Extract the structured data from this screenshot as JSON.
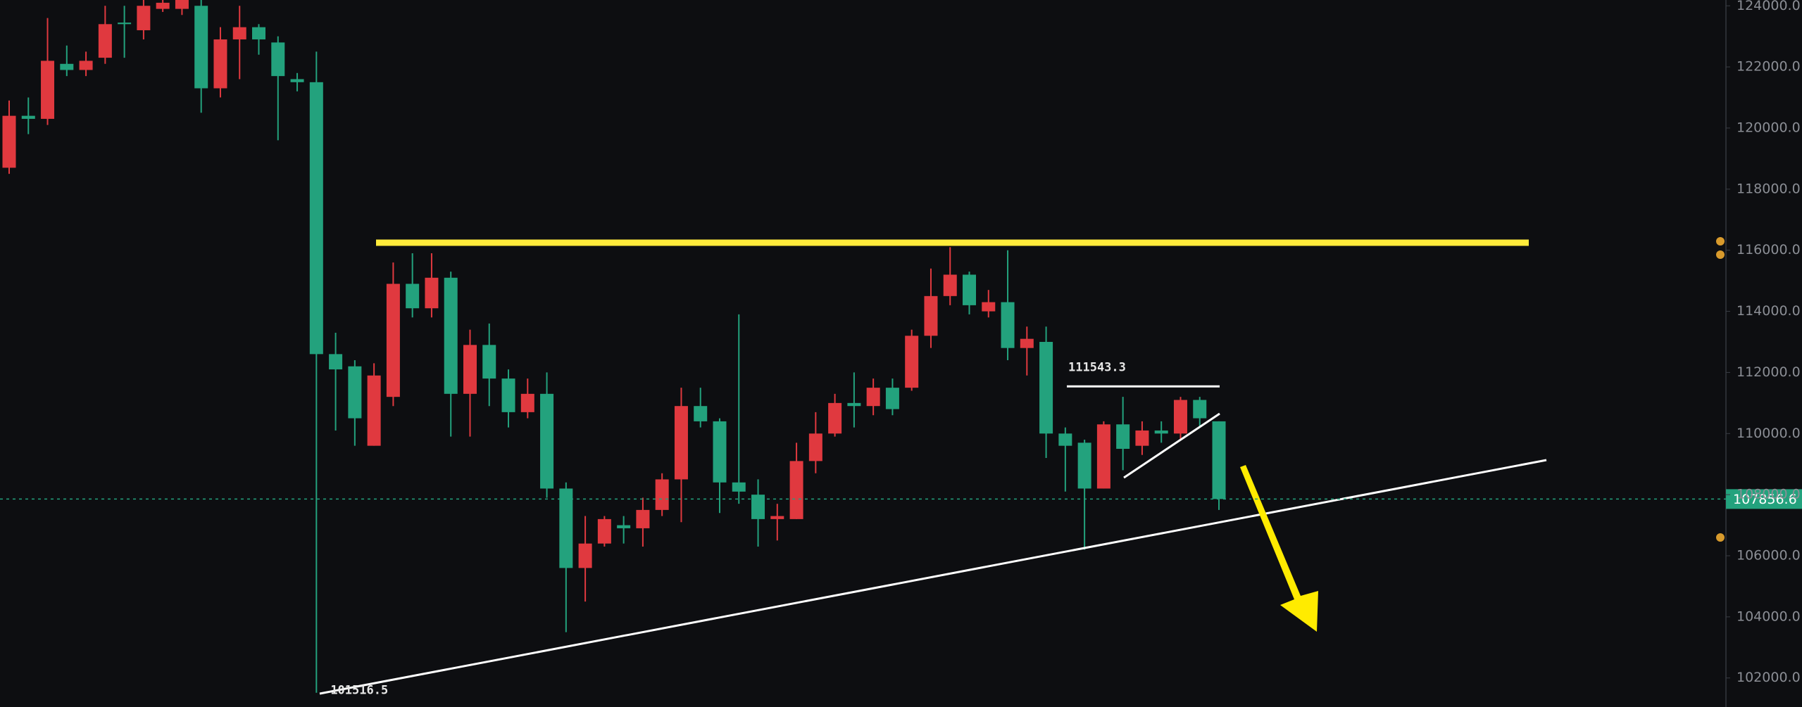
{
  "chart_data": {
    "type": "candlestick",
    "series": [
      {
        "open": [
          118700,
          120400,
          120300,
          122100,
          121900,
          122300,
          123450,
          123200,
          123900,
          123900,
          124000,
          121300,
          122900,
          123300,
          122800,
          121600,
          121500,
          112600,
          112200,
          109600,
          111200,
          114900,
          114100,
          115100,
          111300,
          112900,
          111800,
          110700,
          111300,
          108200,
          105600,
          106400,
          107000,
          106900,
          107500,
          108500,
          110900,
          110400,
          108400,
          108000,
          107200,
          107200,
          109100,
          110000,
          111000,
          110900,
          111500,
          111500,
          113200,
          114500,
          115200,
          114000,
          114300,
          112800,
          113000,
          110000,
          109700,
          108200,
          110300,
          109600,
          110100,
          110000,
          111100,
          110400
        ],
        "high": [
          120900,
          121000,
          123600,
          122700,
          122500,
          124000,
          124000,
          124300,
          124300,
          124600,
          124500,
          123300,
          124000,
          123400,
          123000,
          121800,
          122500,
          113300,
          112400,
          112300,
          115600,
          115900,
          115900,
          115300,
          113400,
          113600,
          112100,
          111800,
          112000,
          108400,
          107300,
          107300,
          107300,
          107900,
          108700,
          111500,
          111500,
          110500,
          113900,
          108500,
          107700,
          109700,
          110700,
          111300,
          112000,
          111800,
          111800,
          113400,
          115400,
          116100,
          115300,
          114700,
          116000,
          113500,
          113500,
          110200,
          109800,
          110400,
          111200,
          110400,
          110400,
          111200,
          111200,
          110400
        ],
        "low": [
          118500,
          119800,
          120100,
          121700,
          121700,
          122100,
          122300,
          122900,
          123800,
          123700,
          120500,
          121000,
          121600,
          122400,
          119600,
          121200,
          101516.5,
          110100,
          109600,
          109600,
          110900,
          113800,
          113800,
          109900,
          109900,
          110900,
          110200,
          110500,
          107900,
          103500,
          104500,
          106300,
          106400,
          106300,
          107300,
          107100,
          110200,
          107400,
          107700,
          106300,
          106500,
          107200,
          108700,
          109900,
          110200,
          110600,
          110600,
          111400,
          112800,
          114200,
          113900,
          113800,
          112400,
          111900,
          109200,
          108100,
          106200,
          108200,
          108800,
          109300,
          109700,
          109800,
          110200,
          107500
        ],
        "close": [
          120400,
          120300,
          122200,
          121900,
          122200,
          123400,
          123400,
          124000,
          124100,
          124300,
          121300,
          122900,
          123300,
          122900,
          121700,
          121500,
          112600,
          112100,
          110500,
          111900,
          114900,
          114100,
          115100,
          111300,
          112900,
          111800,
          110700,
          111300,
          108200,
          105600,
          106400,
          107200,
          106900,
          107500,
          108500,
          110900,
          110400,
          108400,
          108100,
          107200,
          107300,
          109100,
          110000,
          111000,
          110900,
          111500,
          110800,
          113200,
          114500,
          115200,
          114200,
          114300,
          112800,
          113100,
          110000,
          109600,
          108200,
          110300,
          109500,
          110100,
          110000,
          111100,
          110500,
          107856.6
        ]
      }
    ],
    "up_color": "#e0393f",
    "down_color": "#23a27d",
    "ylim": [
      101050,
      124190
    ],
    "yticks": [
      {
        "value": 102000,
        "label": "102000.0"
      },
      {
        "value": 104000,
        "label": "104000.0"
      },
      {
        "value": 106000,
        "label": "106000.0"
      },
      {
        "value": 108000,
        "label": "108000.0"
      },
      {
        "value": 110000,
        "label": "110000.0"
      },
      {
        "value": 112000,
        "label": "112000.0"
      },
      {
        "value": 114000,
        "label": "114000.0"
      },
      {
        "value": 116000,
        "label": "116000.0"
      },
      {
        "value": 118000,
        "label": "118000.0"
      },
      {
        "value": 120000,
        "label": "120000.0"
      },
      {
        "value": 122000,
        "label": "122000.0"
      },
      {
        "value": 124000,
        "label": "124000.0"
      }
    ],
    "range_high": 111543.3
  }
}
